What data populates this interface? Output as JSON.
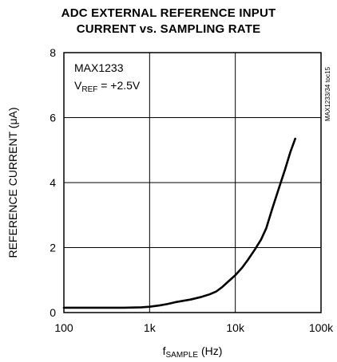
{
  "chart_data": {
    "type": "line",
    "title_line1": "ADC EXTERNAL REFERENCE INPUT",
    "title_line2": "CURRENT vs. SAMPLING RATE",
    "ylabel": "REFERENCE CURRENT (μA)",
    "xlabel_main": "f",
    "xlabel_sub": "SAMPLE",
    "xlabel_unit": " (Hz)",
    "xscale": "log",
    "xlim": [
      100,
      100000
    ],
    "ylim": [
      0,
      8
    ],
    "x_ticks": [
      100,
      1000,
      10000,
      100000
    ],
    "x_tick_labels": [
      "100",
      "1k",
      "10k",
      "100k"
    ],
    "y_ticks": [
      0,
      2,
      4,
      6,
      8
    ],
    "y_tick_labels": [
      "0",
      "2",
      "4",
      "6",
      "8"
    ],
    "grid": true,
    "annotation_device": "MAX1233",
    "annotation_vref_main": "V",
    "annotation_vref_sub": "REF",
    "annotation_vref_value": " = +2.5V",
    "side_code": "MAX1233/34 toc15",
    "series": [
      {
        "x": [
          100,
          200,
          500,
          800,
          1000,
          1300,
          1600,
          2000,
          3000,
          4000,
          5000,
          6000,
          7000,
          8000,
          10000,
          12000,
          14000,
          17000,
          20000,
          23000,
          27000,
          32000,
          38000,
          44000,
          50000
        ],
        "y": [
          0.15,
          0.15,
          0.15,
          0.16,
          0.18,
          0.22,
          0.26,
          0.32,
          0.4,
          0.48,
          0.56,
          0.65,
          0.78,
          0.92,
          1.15,
          1.38,
          1.62,
          1.95,
          2.25,
          2.6,
          3.2,
          3.8,
          4.4,
          4.95,
          5.35
        ]
      }
    ]
  }
}
